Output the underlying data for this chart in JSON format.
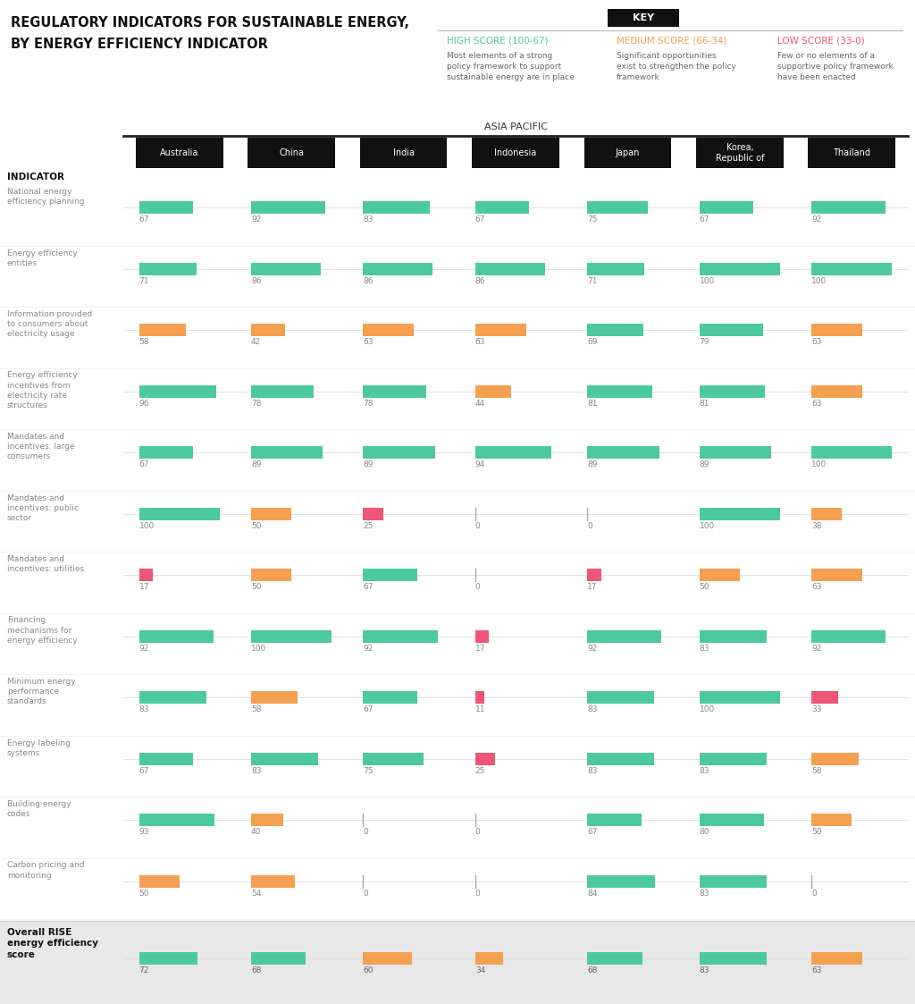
{
  "title_line1": "REGULATORY INDICATORS FOR SUSTAINABLE ENERGY,",
  "title_line2": "BY ENERGY EFFICIENCY INDICATOR",
  "region": "ASIA PACIFIC",
  "countries": [
    "Australia",
    "China",
    "India",
    "Indonesia",
    "Japan",
    "Korea,\nRepublic of",
    "Thailand"
  ],
  "indicator_label": "INDICATOR",
  "key_title": "KEY",
  "key_high_label": "HIGH SCORE (100-67)",
  "key_medium_label": "MEDIUM SCORE (66-34)",
  "key_low_label": "LOW SCORE (33-0)",
  "key_high_desc": "Most elements of a strong\npolicy framework to support\nsustainable energy are in place",
  "key_medium_desc": "Significant opportunities\nexist to strengthen the policy\nframework",
  "key_low_desc": "Few or no elements of a\nsupportive policy framework\nhave been enacted",
  "color_high": "#4DC9A0",
  "color_medium": "#F5A050",
  "color_low": "#EE5577",
  "indicators": [
    "National energy\nefficiency planning",
    "Energy efficiency\nentities",
    "Information provided\nto consumers about\nelectricity usage",
    "Energy efficiency\nincentives from\nelectricity rate\nstructures",
    "Mandates and\nincentives: large\nconsumers",
    "Mandates and\nincentives: public\nsector",
    "Mandates and\nincentives: utilities",
    "Financing\nmechanisms for\nenergy efficiency",
    "Minimum energy\nperformance\nstandards",
    "Energy labeling\nsystems",
    "Building energy\ncodes",
    "Carbon pricing and\nmonitoring"
  ],
  "overall_label": "Overall RISE\nenergy efficiency\nscore",
  "values": [
    [
      67,
      92,
      83,
      67,
      75,
      67,
      92
    ],
    [
      71,
      86,
      86,
      86,
      71,
      100,
      100
    ],
    [
      58,
      42,
      63,
      63,
      69,
      79,
      63
    ],
    [
      96,
      78,
      78,
      44,
      81,
      81,
      63
    ],
    [
      67,
      89,
      89,
      94,
      89,
      89,
      100
    ],
    [
      100,
      50,
      25,
      0,
      0,
      100,
      38
    ],
    [
      17,
      50,
      67,
      0,
      17,
      50,
      63
    ],
    [
      92,
      100,
      92,
      17,
      92,
      83,
      92
    ],
    [
      83,
      58,
      67,
      11,
      83,
      100,
      33
    ],
    [
      67,
      83,
      75,
      25,
      83,
      83,
      58
    ],
    [
      93,
      40,
      0,
      0,
      67,
      80,
      50
    ],
    [
      50,
      54,
      0,
      0,
      84,
      83,
      0
    ]
  ],
  "overall_values": [
    72,
    68,
    60,
    34,
    68,
    83,
    63
  ],
  "bg_color": "#FFFFFF",
  "footer_bg": "#E8E8E8"
}
